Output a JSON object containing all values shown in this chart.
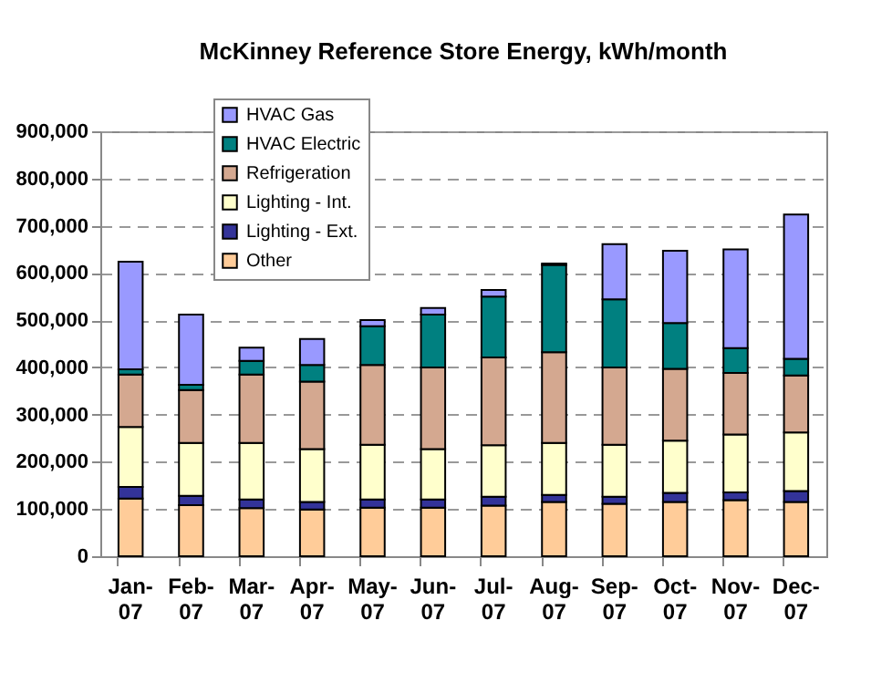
{
  "chart_data": {
    "type": "bar",
    "title": "McKinney Reference Store Energy, kWh/month",
    "stacked": true,
    "categories": [
      "Jan-07",
      "Feb-07",
      "Mar-07",
      "Apr-07",
      "May-07",
      "Jun-07",
      "Jul-07",
      "Aug-07",
      "Sep-07",
      "Oct-07",
      "Nov-07",
      "Dec-07"
    ],
    "series": [
      {
        "name": "Other",
        "color": "#ffcc99",
        "values": [
          122000,
          108000,
          102000,
          99000,
          103000,
          103000,
          107000,
          115000,
          111000,
          115000,
          119000,
          115000
        ]
      },
      {
        "name": "Lighting - Ext.",
        "color": "#333399",
        "values": [
          25000,
          20000,
          18000,
          16000,
          17000,
          17000,
          19000,
          15000,
          15000,
          19000,
          16000,
          23000
        ]
      },
      {
        "name": "Lighting - Int.",
        "color": "#ffffcc",
        "values": [
          127000,
          112000,
          120000,
          112000,
          116000,
          107000,
          109000,
          110000,
          110000,
          111000,
          123000,
          124000
        ]
      },
      {
        "name": "Refrigeration",
        "color": "#d4a890",
        "values": [
          111000,
          112000,
          145000,
          143000,
          169000,
          173000,
          186000,
          192000,
          164000,
          152000,
          130000,
          121000
        ]
      },
      {
        "name": "HVAC Electric",
        "color": "#008080",
        "values": [
          11000,
          11000,
          29000,
          35000,
          82000,
          112000,
          129000,
          185000,
          144000,
          97000,
          53000,
          35000
        ]
      },
      {
        "name": "HVAC Gas",
        "color": "#9999ff",
        "values": [
          228000,
          149000,
          28000,
          55000,
          13000,
          14000,
          14000,
          3000,
          117000,
          153000,
          209000,
          306000
        ]
      }
    ],
    "ylim": [
      0,
      900000
    ],
    "yticks": [
      0,
      {
        "value": 100000,
        "label": "100,000"
      },
      {
        "value": 200000,
        "label": "200,000"
      },
      {
        "value": 300000,
        "label": "300,000"
      },
      {
        "value": 400000,
        "label": "400,000"
      },
      {
        "value": 500000,
        "label": "500,000"
      },
      {
        "value": 600000,
        "label": "600,000"
      },
      {
        "value": 700000,
        "label": "700,000"
      },
      {
        "value": 800000,
        "label": "800,000"
      },
      {
        "value": 900000,
        "label": "900,000"
      }
    ],
    "grid": "y",
    "legend": "top left"
  }
}
